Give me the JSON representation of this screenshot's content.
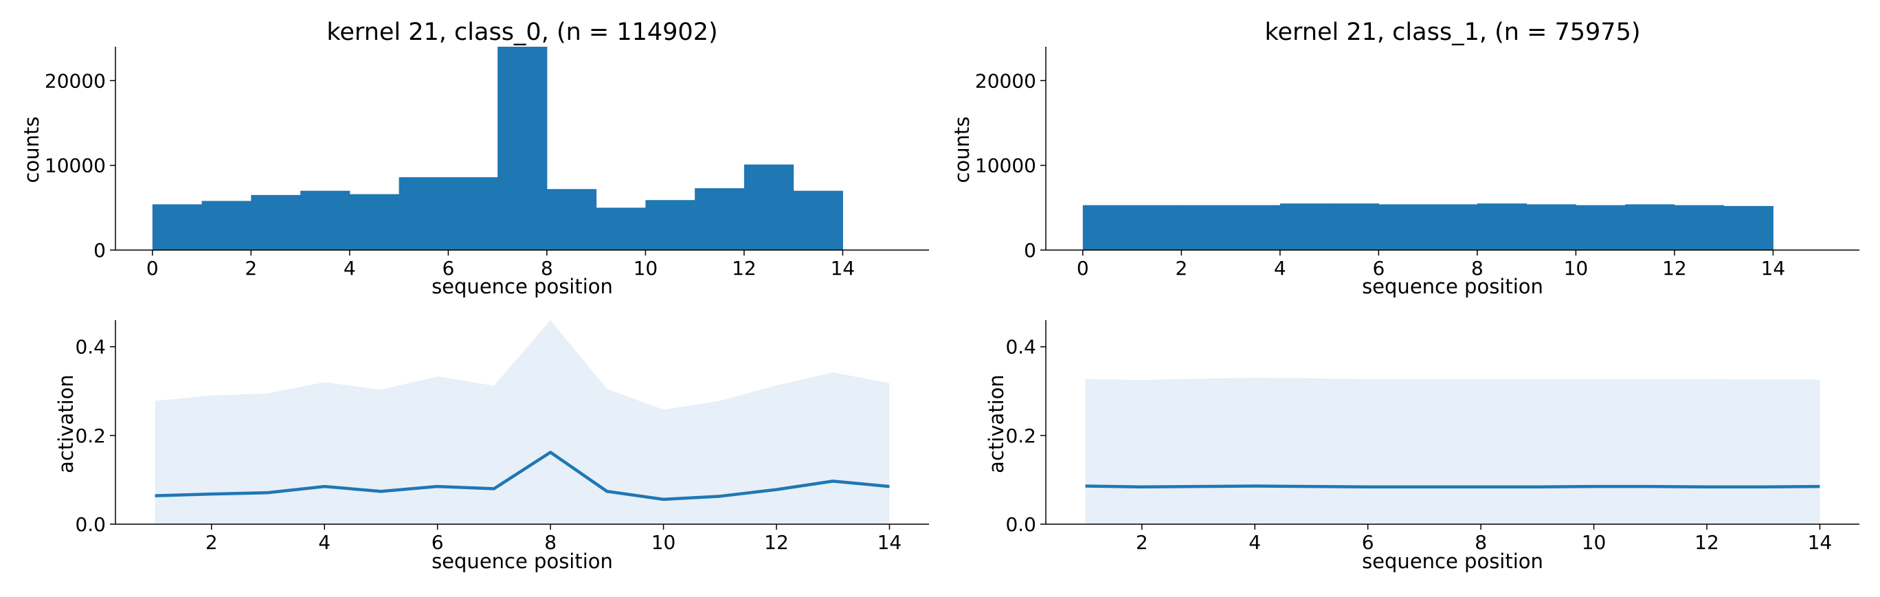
{
  "colors": {
    "bar": "#1f77b4",
    "line": "#1f77b4",
    "band": "#e7eff8"
  },
  "chart_data": [
    {
      "type": "bar",
      "title": "kernel 21, class_0, (n = 114902)",
      "xlabel": "sequence position",
      "ylabel": "counts",
      "xlim": [
        -0.75,
        15.75
      ],
      "ylim": [
        0,
        24000
      ],
      "xticks": [
        0,
        2,
        4,
        6,
        8,
        10,
        12,
        14
      ],
      "yticks": [
        0,
        10000,
        20000
      ],
      "bins": [
        [
          0,
          1
        ],
        [
          1,
          2
        ],
        [
          2,
          3
        ],
        [
          3,
          4
        ],
        [
          4,
          5
        ],
        [
          5,
          6
        ],
        [
          6,
          7
        ],
        [
          7,
          8
        ],
        [
          8,
          9
        ],
        [
          9,
          10
        ],
        [
          10,
          11
        ],
        [
          11,
          12
        ],
        [
          12,
          13
        ],
        [
          13,
          14
        ]
      ],
      "values": [
        5400,
        5800,
        6500,
        7000,
        6600,
        8600,
        8600,
        24000,
        7200,
        5000,
        5900,
        7300,
        10100,
        7000
      ]
    },
    {
      "type": "bar",
      "title": "kernel 21, class_1, (n = 75975)",
      "xlabel": "sequence position",
      "ylabel": "counts",
      "xlim": [
        -0.75,
        15.75
      ],
      "ylim": [
        0,
        24000
      ],
      "xticks": [
        0,
        2,
        4,
        6,
        8,
        10,
        12,
        14
      ],
      "yticks": [
        0,
        10000,
        20000
      ],
      "bins": [
        [
          0,
          1
        ],
        [
          1,
          2
        ],
        [
          2,
          3
        ],
        [
          3,
          4
        ],
        [
          4,
          5
        ],
        [
          5,
          6
        ],
        [
          6,
          7
        ],
        [
          7,
          8
        ],
        [
          8,
          9
        ],
        [
          9,
          10
        ],
        [
          10,
          11
        ],
        [
          11,
          12
        ],
        [
          12,
          13
        ],
        [
          13,
          14
        ]
      ],
      "values": [
        5300,
        5300,
        5300,
        5300,
        5500,
        5500,
        5400,
        5400,
        5500,
        5400,
        5300,
        5400,
        5300,
        5200
      ]
    },
    {
      "type": "line",
      "xlabel": "sequence position",
      "ylabel": "activation",
      "xlim": [
        0.3,
        14.7
      ],
      "ylim": [
        0,
        0.46
      ],
      "xticks": [
        2,
        4,
        6,
        8,
        10,
        12,
        14
      ],
      "yticks": [
        0.0,
        0.2,
        0.4
      ],
      "ytick_labels": [
        "0.0",
        "0.2",
        "0.4"
      ],
      "x": [
        1,
        2,
        3,
        4,
        5,
        6,
        7,
        8,
        9,
        10,
        11,
        12,
        13,
        14
      ],
      "mean": [
        0.064,
        0.068,
        0.071,
        0.085,
        0.074,
        0.085,
        0.08,
        0.162,
        0.074,
        0.056,
        0.063,
        0.078,
        0.097,
        0.085
      ],
      "upper": [
        0.278,
        0.29,
        0.295,
        0.32,
        0.303,
        0.333,
        0.312,
        0.46,
        0.305,
        0.258,
        0.278,
        0.313,
        0.342,
        0.318
      ],
      "lower": [
        0,
        0,
        0,
        0,
        0,
        0,
        0,
        0,
        0,
        0,
        0,
        0,
        0,
        0
      ]
    },
    {
      "type": "line",
      "xlabel": "sequence position",
      "ylabel": "activation",
      "xlim": [
        0.3,
        14.7
      ],
      "ylim": [
        0,
        0.46
      ],
      "xticks": [
        2,
        4,
        6,
        8,
        10,
        12,
        14
      ],
      "yticks": [
        0.0,
        0.2,
        0.4
      ],
      "ytick_labels": [
        "0.0",
        "0.2",
        "0.4"
      ],
      "x": [
        1,
        2,
        3,
        4,
        5,
        6,
        7,
        8,
        9,
        10,
        11,
        12,
        13,
        14
      ],
      "mean": [
        0.086,
        0.084,
        0.085,
        0.086,
        0.085,
        0.084,
        0.084,
        0.084,
        0.084,
        0.085,
        0.085,
        0.084,
        0.084,
        0.085
      ],
      "upper": [
        0.327,
        0.325,
        0.328,
        0.33,
        0.329,
        0.327,
        0.327,
        0.327,
        0.327,
        0.327,
        0.327,
        0.327,
        0.326,
        0.326
      ],
      "lower": [
        0,
        0,
        0,
        0,
        0,
        0,
        0,
        0,
        0,
        0,
        0,
        0,
        0,
        0
      ]
    }
  ]
}
